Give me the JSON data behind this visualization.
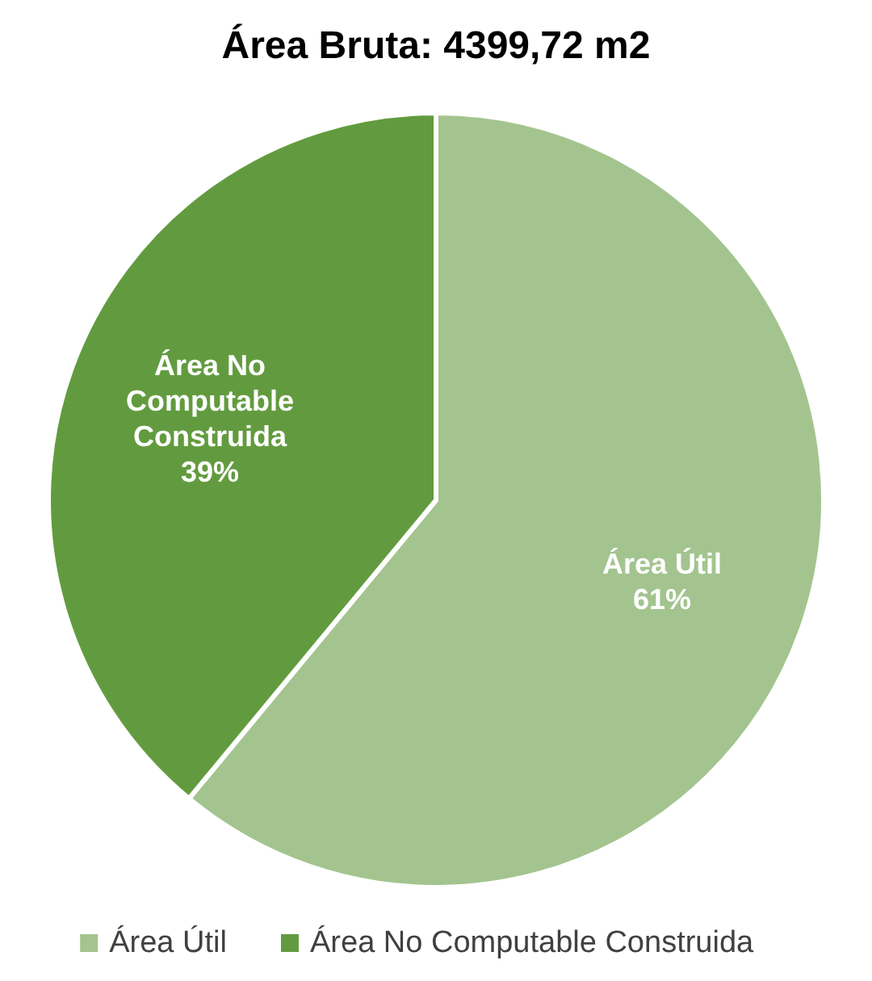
{
  "chart_data": {
    "type": "pie",
    "title": "Área Bruta: 4399,72 m2",
    "categories": [
      "Área Útil",
      "Área No Computable Construida"
    ],
    "values": [
      61,
      39
    ],
    "value_labels": [
      "61%",
      "39%"
    ],
    "colors": [
      "#a3c48f",
      "#629b3f"
    ],
    "legend": "bottom"
  }
}
